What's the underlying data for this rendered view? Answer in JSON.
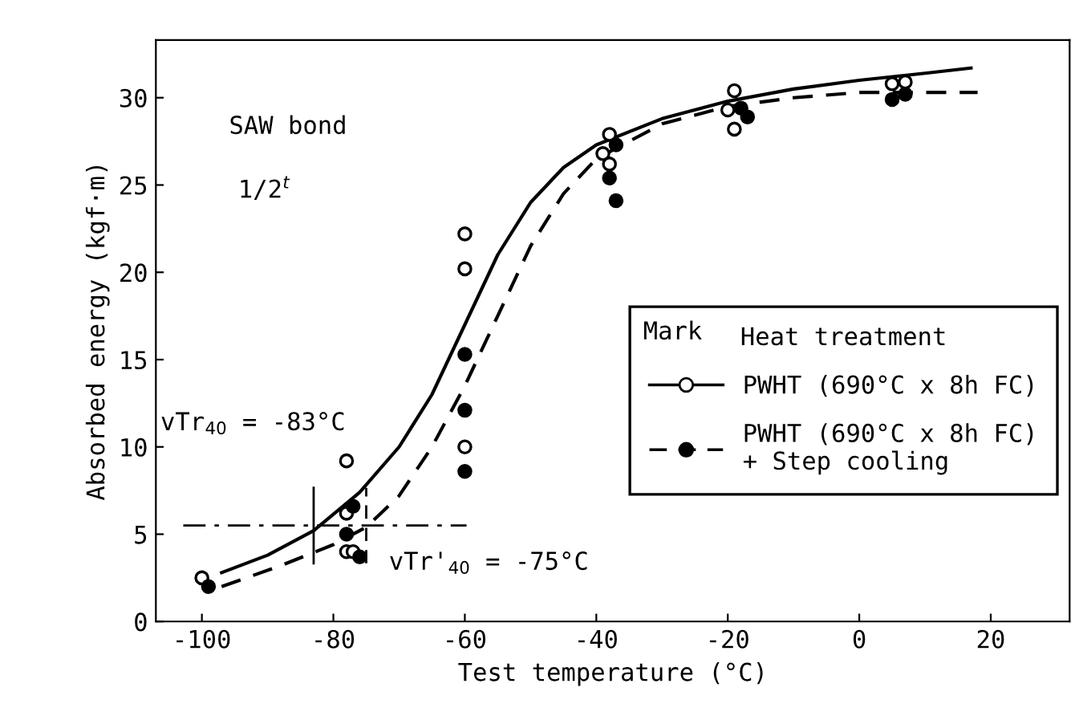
{
  "chart_data": {
    "type": "scatter",
    "xlabel": "Test temperature (°C)",
    "ylabel": "Absorbed energy (kgf·m)",
    "legend_title": "Heat treatment",
    "annotations": [
      "SAW bond",
      "1/2$^{t}$",
      "vTr$_{40}$ = -83°C",
      "vTr'$_{40}$ = -75°C",
      "Mark"
    ],
    "xlim": [
      -107,
      32
    ],
    "ylim": [
      0,
      33.3
    ],
    "xticks": [
      -100,
      -80,
      -60,
      -40,
      -20,
      0,
      20
    ],
    "yticks": [
      0,
      5,
      10,
      15,
      20,
      25,
      30
    ],
    "grid": false,
    "legend": "right",
    "marker": "circle",
    "ref_lines": [
      {
        "axis": "y",
        "value": 5.5,
        "label": null,
        "color": "#000000",
        "line_style": "dashdot"
      },
      {
        "axis": "x",
        "value": -83,
        "label": null,
        "color": "#000000",
        "line_style": "solid"
      },
      {
        "axis": "x",
        "value": -75,
        "label": null,
        "color": "#000000",
        "line_style": "dashed"
      }
    ],
    "series": [
      {
        "name": "PWHT (690°C x 8h FC)",
        "color": "#000000",
        "x": [
          -100,
          -99,
          -78,
          -78,
          -78,
          -77,
          -60,
          -60,
          -60,
          -38,
          -39,
          -38,
          -19,
          -20,
          -19,
          5,
          7
        ],
        "values": [
          2.5,
          null,
          9.2,
          6.2,
          4.0,
          4.0,
          22.2,
          20.2,
          10.0,
          27.9,
          26.8,
          26.2,
          30.4,
          29.3,
          28.2,
          30.8,
          30.9
        ]
      },
      {
        "name": "PWHT (690°C x 8h FC)\n+ Step cooling",
        "color": "#000000",
        "x": [
          -99,
          -77,
          -78,
          -76,
          -60,
          -60,
          -60,
          -37,
          -38,
          -37,
          -18,
          -17,
          5,
          7
        ],
        "values": [
          2.0,
          6.6,
          5.0,
          3.7,
          15.3,
          12.1,
          8.6,
          27.3,
          25.4,
          24.1,
          29.4,
          28.9,
          29.9,
          30.2
        ]
      },
      {
        "type": "line",
        "marker": "none",
        "line_style": "solid",
        "color": "#000000",
        "x": [
          -97,
          -90,
          -83,
          -76,
          -70,
          -65,
          -60,
          -55,
          -50,
          -45,
          -40,
          -30,
          -20,
          -10,
          0,
          10,
          17
        ],
        "values": [
          2.8,
          3.8,
          5.2,
          7.4,
          10.0,
          13.0,
          17.0,
          21.0,
          24.0,
          26.0,
          27.3,
          28.8,
          29.8,
          30.5,
          31.0,
          31.4,
          31.7
        ]
      },
      {
        "type": "line",
        "marker": "none",
        "line_style": "dashed",
        "color": "#000000",
        "x": [
          -97,
          -88,
          -80,
          -75,
          -70,
          -65,
          -60,
          -55,
          -50,
          -45,
          -40,
          -30,
          -20,
          -10,
          0,
          10,
          18
        ],
        "values": [
          2.0,
          3.2,
          4.4,
          5.4,
          7.2,
          10.0,
          13.5,
          17.5,
          21.5,
          24.5,
          26.5,
          28.5,
          29.5,
          30.0,
          30.3,
          30.3,
          30.3
        ]
      }
    ]
  }
}
